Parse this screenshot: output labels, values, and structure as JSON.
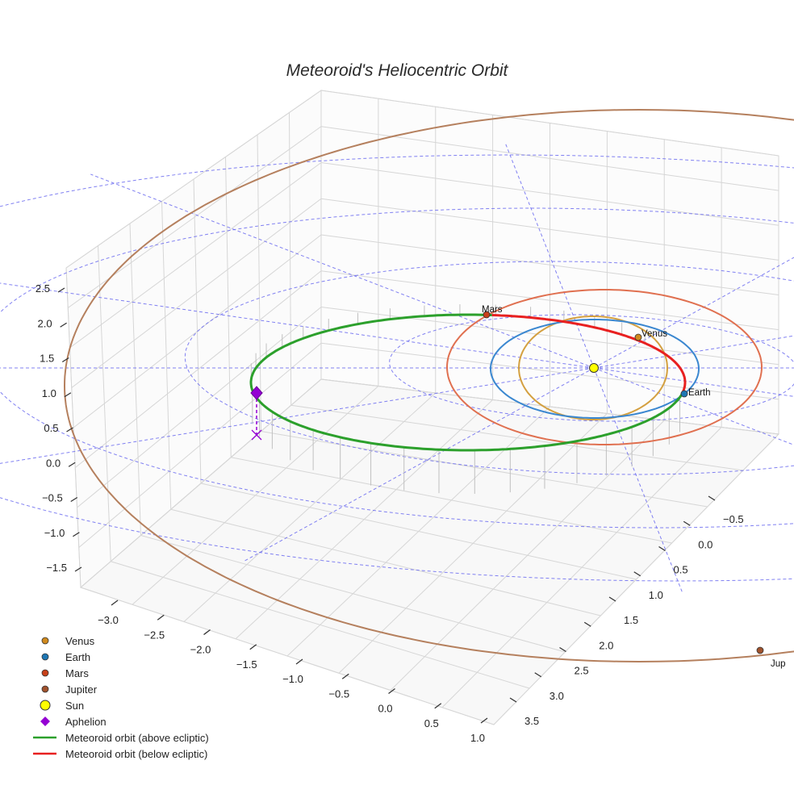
{
  "chart_data": {
    "type": "line",
    "projection": "3d",
    "title": "Meteoroid's Heliocentric Orbit",
    "xlabel": "",
    "ylabel": "",
    "zlabel": "",
    "xlim": [
      -3.3,
      1.0
    ],
    "ylim": [
      -0.8,
      3.7
    ],
    "zlim": [
      -1.8,
      2.6
    ],
    "x_ticks": [
      "−3.0",
      "−2.5",
      "−2.0",
      "−1.5",
      "−1.0",
      "−0.5",
      "0.0",
      "0.5",
      "1.0"
    ],
    "y_ticks": [
      "−0.5",
      "0.0",
      "0.5",
      "1.0",
      "1.5",
      "2.0",
      "2.5",
      "3.0",
      "3.5"
    ],
    "z_ticks": [
      "2.5",
      "2.0",
      "1.5",
      "1.0",
      "0.5",
      "0.0",
      "−0.5",
      "−1.0",
      "−1.5"
    ],
    "grid": true,
    "legend_position": "bottom-left",
    "ecliptic_grid": {
      "style": "dashed",
      "color": "#6b6bf0",
      "radii_au": [
        1,
        2,
        3,
        4
      ]
    },
    "sun": {
      "label": "Sun",
      "x": 0,
      "y": 0,
      "z": 0,
      "color": "#ffff00"
    },
    "planets": [
      {
        "name": "Venus",
        "label": "Venus",
        "orbit_radius_au": 0.72,
        "color": "#d08a1e",
        "orbit_color": "#d4a040"
      },
      {
        "name": "Earth",
        "label": "Earth",
        "orbit_radius_au": 1.0,
        "color": "#1f77b4",
        "orbit_color": "#3a87d0"
      },
      {
        "name": "Mars",
        "label": "Mars",
        "orbit_radius_au": 1.52,
        "color": "#c8401a",
        "orbit_color": "#e07050"
      },
      {
        "name": "Jupiter",
        "label": "Jup",
        "orbit_radius_au": 5.2,
        "color": "#a0522d",
        "orbit_color": "#b5805e"
      }
    ],
    "meteoroid": {
      "aphelion": {
        "label": "Aphelion",
        "color": "#9400d3"
      },
      "series": [
        {
          "name": "Meteoroid orbit (above ecliptic)",
          "color": "#2ca02c"
        },
        {
          "name": "Meteoroid orbit (below ecliptic)",
          "color": "#e82020"
        }
      ]
    }
  },
  "legend": {
    "items": [
      {
        "label": "Venus",
        "marker": "circle",
        "color": "#d08a1e"
      },
      {
        "label": "Earth",
        "marker": "circle",
        "color": "#1f77b4"
      },
      {
        "label": "Mars",
        "marker": "circle",
        "color": "#c8401a"
      },
      {
        "label": "Jupiter",
        "marker": "circle",
        "color": "#a0522d"
      },
      {
        "label": "Sun",
        "marker": "sun",
        "color": "#ffff00"
      },
      {
        "label": "Aphelion",
        "marker": "diamond",
        "color": "#9400d3"
      },
      {
        "label": "Meteoroid orbit (above ecliptic)",
        "marker": "line",
        "color": "#2ca02c"
      },
      {
        "label": "Meteoroid orbit (below ecliptic)",
        "marker": "line",
        "color": "#e82020"
      }
    ]
  }
}
